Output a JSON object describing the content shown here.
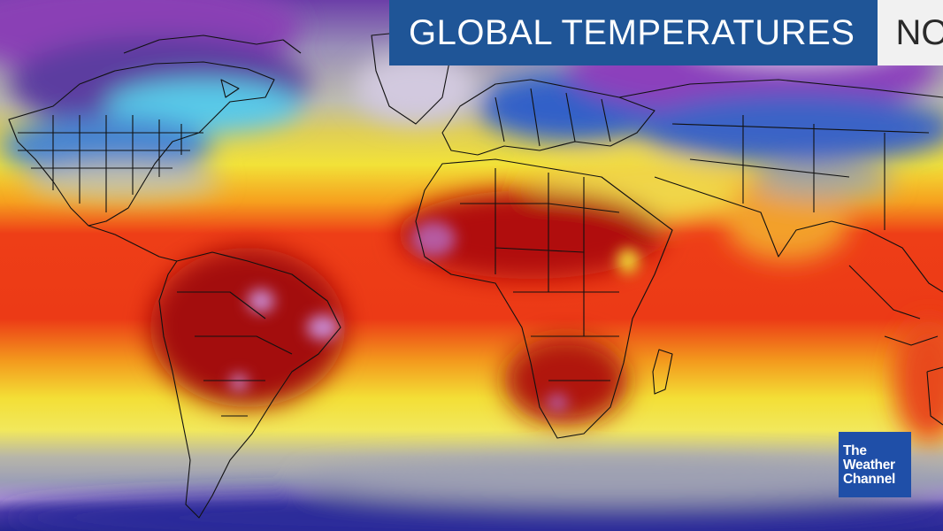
{
  "header": {
    "title": "GLOBAL TEMPERATURES",
    "time_label": "NOW"
  },
  "logo": {
    "line1": "The",
    "line2": "Weather",
    "line3": "Channel"
  },
  "map": {
    "projection": "equirectangular world map",
    "palette": [
      "#2a2a9a",
      "#5d2f9e",
      "#b05ac8",
      "#e3b8ef",
      "#ffffff",
      "#53d4ee",
      "#2f63c8",
      "#aaa9a0",
      "#f3e535",
      "#f6a21e",
      "#ee3315",
      "#ad0a0f",
      "#b65aa0"
    ]
  }
}
